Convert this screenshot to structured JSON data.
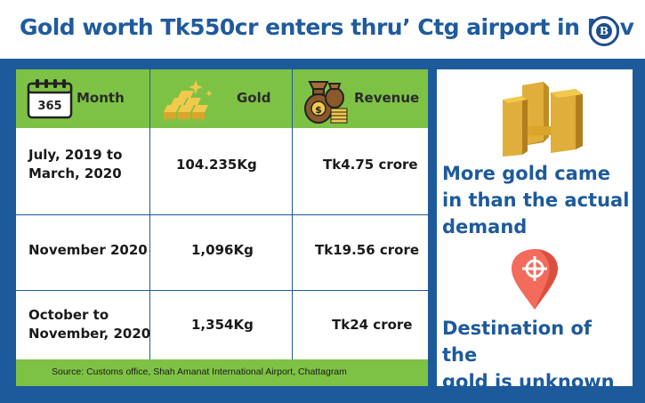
{
  "header": {
    "title": "Gold worth Tk550cr enters thru’ Ctg airport in Nov",
    "logo_letter": "B"
  },
  "table": {
    "columns": [
      {
        "label": "Month",
        "icon": "calendar-icon",
        "icon_text": "365"
      },
      {
        "label": "Gold",
        "icon": "gold-bars-icon"
      },
      {
        "label": "Revenue",
        "icon": "money-bag-icon"
      }
    ],
    "rows": [
      {
        "month_line1": "July, 2019 to",
        "month_line2": "March, 2020",
        "gold": "104.235Kg",
        "revenue": "Tk4.75 crore"
      },
      {
        "month_line1": "November 2020",
        "month_line2": "",
        "gold": "1,096Kg",
        "revenue": "Tk19.56 crore"
      },
      {
        "month_line1": "October to",
        "month_line2": "November, 2020",
        "gold": "1,354Kg",
        "revenue": "Tk24 crore"
      }
    ],
    "source": "Source: Customs office, Shah Amanat International Airport, Chattagram"
  },
  "side": {
    "statement1_line1": "More gold came",
    "statement1_line2": "in than the actual",
    "statement1_line3": "demand",
    "statement2_line1": "Destination of the",
    "statement2_line2": "gold is unknown",
    "icons": [
      "gold-bars-icon",
      "location-pin-icon"
    ]
  },
  "colors": {
    "brand_blue": "#1d5a9c",
    "title_blue": "#1f5b9c",
    "header_green": "#7ec245",
    "gold": "#d9a52b",
    "pin_red": "#f26b5b"
  }
}
